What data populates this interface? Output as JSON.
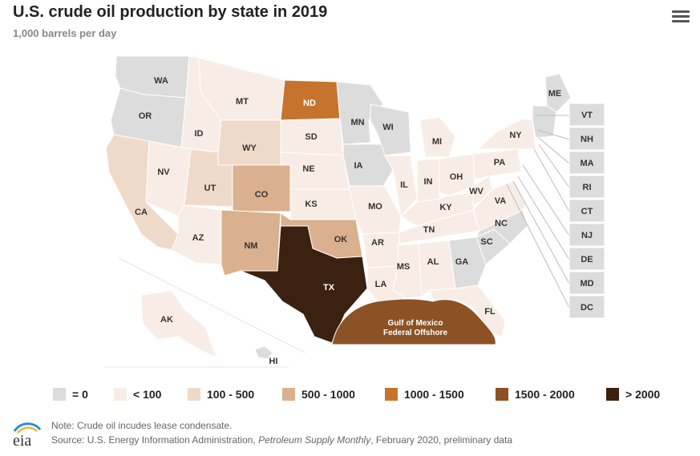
{
  "title": "U.S. crude oil production by state in 2019",
  "subtitle": "1,000 barrels per day",
  "menu_icon": "hamburger-menu-icon",
  "colors": {
    "zero": "#dcdcdc",
    "lt100": "#f8ede6",
    "r100_500": "#efdac9",
    "r500_1000": "#dab08e",
    "r1000_1500": "#c6742d",
    "r1500_2000": "#8c5226",
    "gt2000": "#3b2110"
  },
  "legend": [
    {
      "key": "zero",
      "label": "= 0"
    },
    {
      "key": "lt100",
      "label": "< 100"
    },
    {
      "key": "r100_500",
      "label": "100 - 500"
    },
    {
      "key": "r500_1000",
      "label": "500 - 1000"
    },
    {
      "key": "r1000_1500",
      "label": "1000 - 1500"
    },
    {
      "key": "r1500_2000",
      "label": "1500 - 2000"
    },
    {
      "key": "gt2000",
      "label": "> 2000"
    }
  ],
  "states": {
    "WA": {
      "label": "WA",
      "category": "zero"
    },
    "OR": {
      "label": "OR",
      "category": "zero"
    },
    "CA": {
      "label": "CA",
      "category": "r100_500"
    },
    "NV": {
      "label": "NV",
      "category": "lt100"
    },
    "ID": {
      "label": "ID",
      "category": "lt100"
    },
    "MT": {
      "label": "MT",
      "category": "lt100"
    },
    "WY": {
      "label": "WY",
      "category": "r100_500"
    },
    "UT": {
      "label": "UT",
      "category": "r100_500"
    },
    "AZ": {
      "label": "AZ",
      "category": "lt100"
    },
    "CO": {
      "label": "CO",
      "category": "r500_1000"
    },
    "NM": {
      "label": "NM",
      "category": "r500_1000"
    },
    "ND": {
      "label": "ND",
      "category": "r1000_1500"
    },
    "SD": {
      "label": "SD",
      "category": "lt100"
    },
    "NE": {
      "label": "NE",
      "category": "lt100"
    },
    "KS": {
      "label": "KS",
      "category": "lt100"
    },
    "OK": {
      "label": "OK",
      "category": "r500_1000"
    },
    "TX": {
      "label": "TX",
      "category": "gt2000"
    },
    "MN": {
      "label": "MN",
      "category": "zero"
    },
    "IA": {
      "label": "IA",
      "category": "zero"
    },
    "MO": {
      "label": "MO",
      "category": "lt100"
    },
    "AR": {
      "label": "AR",
      "category": "lt100"
    },
    "LA": {
      "label": "LA",
      "category": "lt100"
    },
    "WI": {
      "label": "WI",
      "category": "zero"
    },
    "IL": {
      "label": "IL",
      "category": "lt100"
    },
    "MS": {
      "label": "MS",
      "category": "lt100"
    },
    "MI": {
      "label": "MI",
      "category": "lt100"
    },
    "IN": {
      "label": "IN",
      "category": "lt100"
    },
    "OH": {
      "label": "OH",
      "category": "lt100"
    },
    "KY": {
      "label": "KY",
      "category": "lt100"
    },
    "TN": {
      "label": "TN",
      "category": "lt100"
    },
    "AL": {
      "label": "AL",
      "category": "lt100"
    },
    "GA": {
      "label": "GA",
      "category": "zero"
    },
    "FL": {
      "label": "FL",
      "category": "lt100"
    },
    "SC": {
      "label": "SC",
      "category": "zero"
    },
    "NC": {
      "label": "NC",
      "category": "zero"
    },
    "VA": {
      "label": "VA",
      "category": "lt100"
    },
    "WV": {
      "label": "WV",
      "category": "lt100"
    },
    "PA": {
      "label": "PA",
      "category": "lt100"
    },
    "NY": {
      "label": "NY",
      "category": "lt100"
    },
    "ME": {
      "label": "ME",
      "category": "zero"
    },
    "AK": {
      "label": "AK",
      "category": "lt100"
    },
    "HI": {
      "label": "HI",
      "category": "zero"
    },
    "GOM": {
      "label": "Gulf of Mexico",
      "label2": "Federal Offshore",
      "category": "r1500_2000"
    }
  },
  "small_states": [
    {
      "label": "VT",
      "category": "zero"
    },
    {
      "label": "NH",
      "category": "zero"
    },
    {
      "label": "MA",
      "category": "zero"
    },
    {
      "label": "RI",
      "category": "zero"
    },
    {
      "label": "CT",
      "category": "zero"
    },
    {
      "label": "NJ",
      "category": "zero"
    },
    {
      "label": "DE",
      "category": "zero"
    },
    {
      "label": "MD",
      "category": "zero"
    },
    {
      "label": "DC",
      "category": "zero"
    }
  ],
  "footer": {
    "logo_text": "eia",
    "note": "Note: Crude oil incudes lease condensate.",
    "source_prefix": "Source: U.S. Energy Information Administration, ",
    "source_title": "Petroleum Supply Monthly",
    "source_suffix": ", February 2020, preliminary data"
  }
}
